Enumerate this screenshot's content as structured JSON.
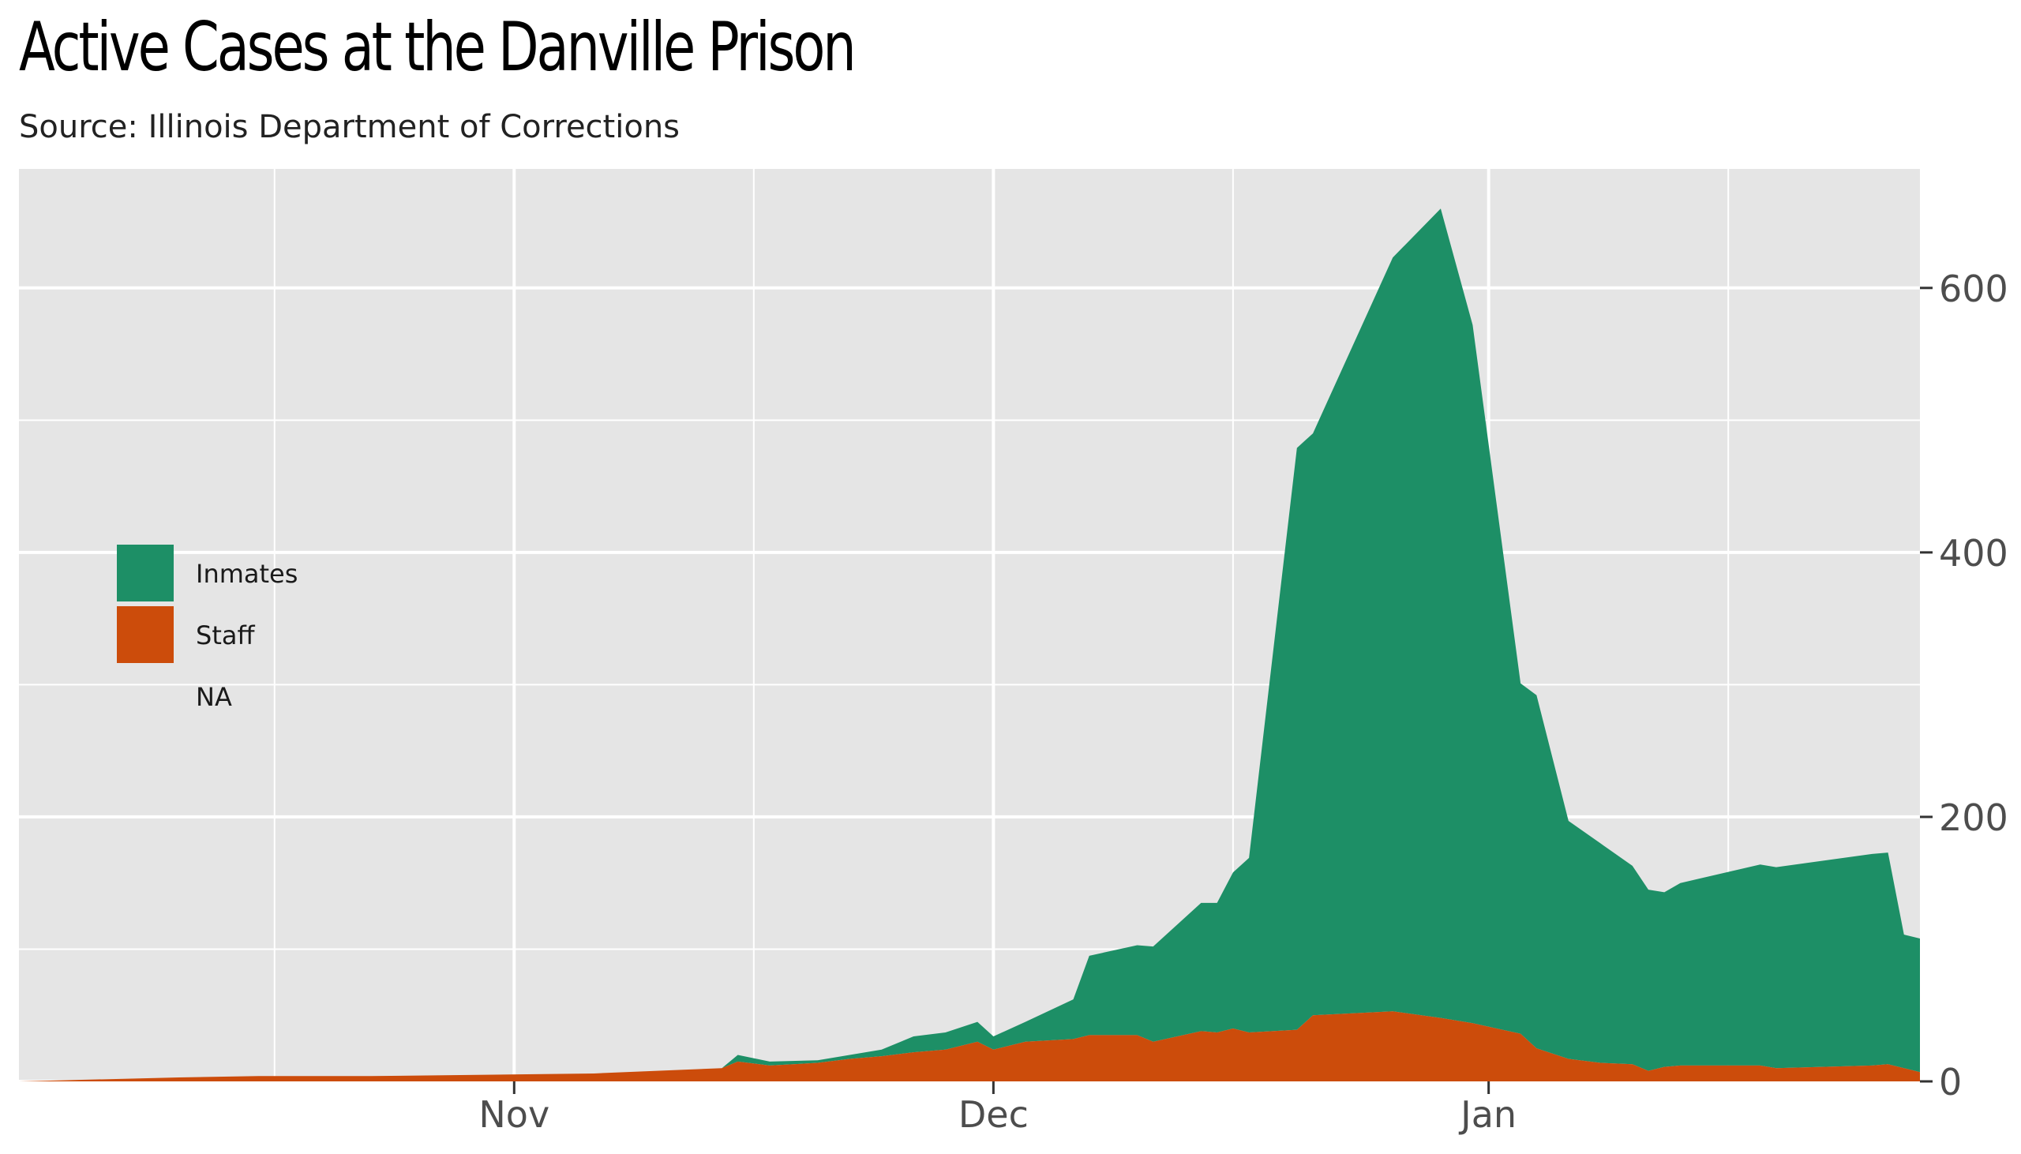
{
  "chart_data": {
    "type": "area",
    "stacked": true,
    "title": "Active Cases at the Danville Prison",
    "subtitle": "Source: Illinois Department of Corrections",
    "x_axis": {
      "type": "date",
      "range": [
        "2020-10-01",
        "2021-01-28"
      ],
      "tick_labels": [
        {
          "date": "2020-11-01",
          "label": "Nov"
        },
        {
          "date": "2020-12-01",
          "label": "Dec"
        },
        {
          "date": "2021-01-01",
          "label": "Jan"
        }
      ]
    },
    "y_axis": {
      "position": "right",
      "range": [
        0,
        690
      ],
      "ticks": [
        0,
        200,
        400,
        600
      ],
      "tick_labels": [
        "0",
        "200",
        "400",
        "600"
      ]
    },
    "grid": true,
    "background_color": "#e5e5e5",
    "legend": {
      "position": "left",
      "entries": [
        {
          "label": "Inmates",
          "color": "#1d8f66"
        },
        {
          "label": "Staff",
          "color": "#cc4c0b"
        },
        {
          "label": "NA",
          "color": null
        }
      ]
    },
    "series": [
      {
        "name": "Staff",
        "color": "#cc4c0b",
        "points": [
          [
            "2020-10-01",
            0
          ],
          [
            "2020-10-11",
            3
          ],
          [
            "2020-10-16",
            4
          ],
          [
            "2020-10-23",
            4
          ],
          [
            "2020-11-06",
            6
          ],
          [
            "2020-11-14",
            10
          ],
          [
            "2020-11-15",
            15
          ],
          [
            "2020-11-17",
            12
          ],
          [
            "2020-11-20",
            14
          ],
          [
            "2020-11-22",
            17
          ],
          [
            "2020-11-24",
            19
          ],
          [
            "2020-11-26",
            22
          ],
          [
            "2020-11-28",
            24
          ],
          [
            "2020-11-30",
            30
          ],
          [
            "2020-12-01",
            24
          ],
          [
            "2020-12-03",
            30
          ],
          [
            "2020-12-06",
            32
          ],
          [
            "2020-12-07",
            35
          ],
          [
            "2020-12-10",
            35
          ],
          [
            "2020-12-11",
            30
          ],
          [
            "2020-12-14",
            38
          ],
          [
            "2020-12-15",
            37
          ],
          [
            "2020-12-16",
            40
          ],
          [
            "2020-12-17",
            37
          ],
          [
            "2020-12-20",
            39
          ],
          [
            "2020-12-21",
            50
          ],
          [
            "2020-12-26",
            53
          ],
          [
            "2020-12-29",
            48
          ],
          [
            "2020-12-31",
            44
          ],
          [
            "2021-01-03",
            36
          ],
          [
            "2021-01-04",
            25
          ],
          [
            "2021-01-06",
            17
          ],
          [
            "2021-01-08",
            14
          ],
          [
            "2021-01-10",
            13
          ],
          [
            "2021-01-11",
            8
          ],
          [
            "2021-01-12",
            11
          ],
          [
            "2021-01-13",
            12
          ],
          [
            "2021-01-18",
            12
          ],
          [
            "2021-01-19",
            10
          ],
          [
            "2021-01-25",
            12
          ],
          [
            "2021-01-26",
            13
          ],
          [
            "2021-01-27",
            10
          ],
          [
            "2021-01-28",
            7
          ]
        ]
      },
      {
        "name": "Inmates",
        "color": "#1d8f66",
        "points": [
          [
            "2020-10-01",
            0
          ],
          [
            "2020-11-14",
            0
          ],
          [
            "2020-11-15",
            5
          ],
          [
            "2020-11-17",
            3
          ],
          [
            "2020-11-20",
            2
          ],
          [
            "2020-11-22",
            3
          ],
          [
            "2020-11-24",
            5
          ],
          [
            "2020-11-26",
            12
          ],
          [
            "2020-11-28",
            13
          ],
          [
            "2020-11-30",
            15
          ],
          [
            "2020-12-01",
            10
          ],
          [
            "2020-12-03",
            15
          ],
          [
            "2020-12-06",
            30
          ],
          [
            "2020-12-07",
            60
          ],
          [
            "2020-12-10",
            68
          ],
          [
            "2020-12-11",
            72
          ],
          [
            "2020-12-14",
            97
          ],
          [
            "2020-12-15",
            98
          ],
          [
            "2020-12-16",
            118
          ],
          [
            "2020-12-17",
            132
          ],
          [
            "2020-12-20",
            440
          ],
          [
            "2020-12-21",
            440
          ],
          [
            "2020-12-26",
            570
          ],
          [
            "2020-12-29",
            612
          ],
          [
            "2020-12-31",
            528
          ],
          [
            "2021-01-03",
            265
          ],
          [
            "2021-01-04",
            267
          ],
          [
            "2021-01-06",
            180
          ],
          [
            "2021-01-08",
            166
          ],
          [
            "2021-01-10",
            150
          ],
          [
            "2021-01-11",
            137
          ],
          [
            "2021-01-12",
            132
          ],
          [
            "2021-01-13",
            138
          ],
          [
            "2021-01-18",
            152
          ],
          [
            "2021-01-19",
            152
          ],
          [
            "2021-01-25",
            160
          ],
          [
            "2021-01-26",
            160
          ],
          [
            "2021-01-27",
            101
          ],
          [
            "2021-01-28",
            101
          ]
        ]
      }
    ]
  }
}
